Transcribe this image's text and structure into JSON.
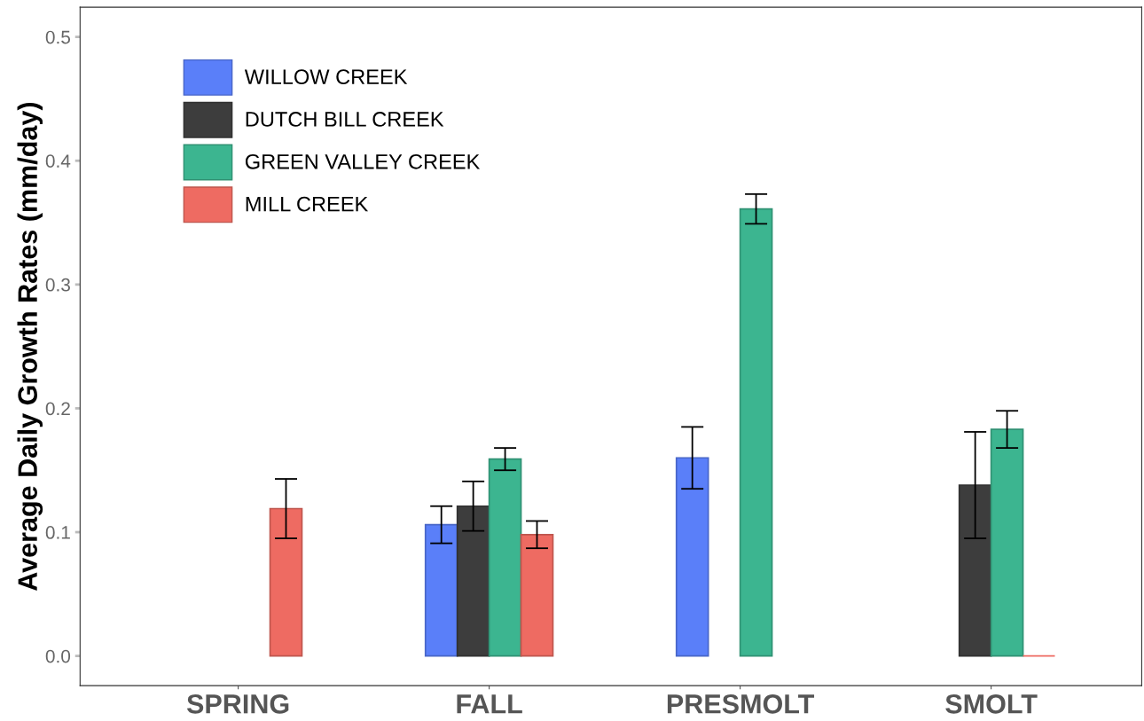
{
  "chart_data": {
    "type": "bar",
    "ylabel": "Average Daily Growth Rates (mm/day)",
    "categories": [
      "SPRING",
      "FALL",
      "PRESMOLT",
      "SMOLT"
    ],
    "series": [
      {
        "name": "WILLOW CREEK",
        "color": "#5a7ff9",
        "values": [
          null,
          0.106,
          0.16,
          null
        ],
        "errors": [
          null,
          0.015,
          0.025,
          null
        ]
      },
      {
        "name": "DUTCH BILL CREEK",
        "color": "#3d3d3d",
        "values": [
          null,
          0.121,
          null,
          0.138
        ],
        "errors": [
          null,
          0.02,
          null,
          0.043
        ]
      },
      {
        "name": "GREEN VALLEY CREEK",
        "color": "#3cb590",
        "values": [
          null,
          0.159,
          0.361,
          0.183
        ],
        "errors": [
          null,
          0.009,
          0.012,
          0.015
        ]
      },
      {
        "name": "MILL CREEK",
        "color": "#ee6b62",
        "values": [
          0.119,
          0.098,
          null,
          0
        ],
        "errors": [
          0.024,
          0.011,
          null,
          null
        ]
      }
    ],
    "ylim": [
      -0.024,
      0.524
    ],
    "yticks": [
      {
        "value": 0,
        "label": "0.0"
      },
      {
        "value": 0.1,
        "label": "0.1"
      },
      {
        "value": 0.2,
        "label": "0.2"
      },
      {
        "value": 0.3,
        "label": "0.3"
      },
      {
        "value": 0.4,
        "label": "0.4"
      },
      {
        "value": 0.5,
        "label": "0.5"
      }
    ],
    "legend": "top left"
  }
}
